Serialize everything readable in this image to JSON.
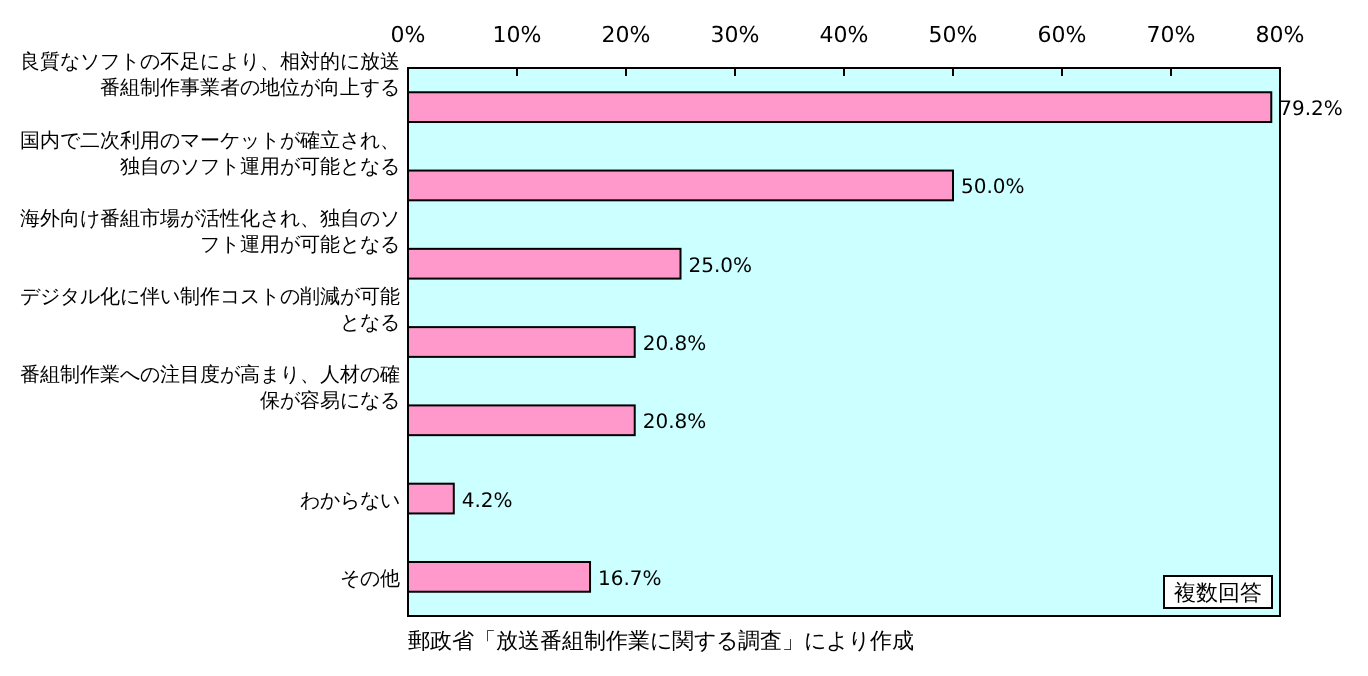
{
  "chart_data": {
    "type": "bar",
    "orientation": "horizontal",
    "categories": [
      "良質なソフトの不足により、相対的に放送番組制作事業者の地位が向上する",
      "国内で二次利用のマーケットが確立され、独自のソフト運用が可能となる",
      "海外向け番組市場が活性化され、独自のソフト運用が可能となる",
      "デジタル化に伴い制作コストの削減が可能となる",
      "番組制作業への注目度が高まり、人材の確保が容易になる",
      "わからない",
      "その他"
    ],
    "values": [
      79.2,
      50.0,
      25.0,
      20.8,
      20.8,
      4.2,
      16.7
    ],
    "value_labels": [
      "79.2%",
      "50.0%",
      "25.0%",
      "20.8%",
      "20.8%",
      "4.2%",
      "16.7%"
    ],
    "color": "#ff99cc",
    "xlim": [
      0,
      80
    ],
    "xticks": [
      {
        "value": 0,
        "label": "0%"
      },
      {
        "value": 10,
        "label": "10%"
      },
      {
        "value": 20,
        "label": "20%"
      },
      {
        "value": 30,
        "label": "30%"
      },
      {
        "value": 40,
        "label": "40%"
      },
      {
        "value": 50,
        "label": "50%"
      },
      {
        "value": 60,
        "label": "60%"
      },
      {
        "value": 70,
        "label": "70%"
      },
      {
        "value": 80,
        "label": "80%"
      }
    ],
    "grid": false,
    "annotations": [
      "複数回答",
      "郵政省「放送番組制作業に関する調査」により作成"
    ]
  }
}
